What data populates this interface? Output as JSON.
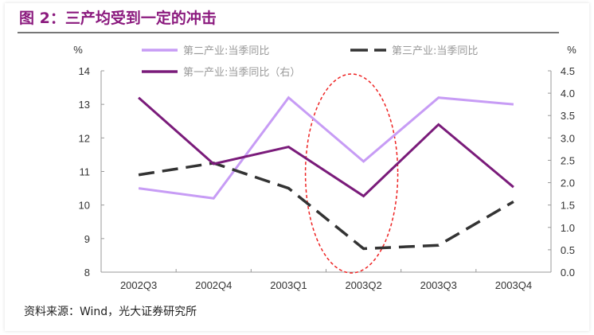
{
  "title": "图 2：三产均受到一定的冲击",
  "source": "资料来源：Wind，光大证券研究所",
  "chart_data": {
    "type": "line",
    "title": "图 2：三产均受到一定的冲击",
    "categories": [
      "2002Q3",
      "2002Q4",
      "2003Q1",
      "2003Q2",
      "2003Q3",
      "2003Q4"
    ],
    "left_axis": {
      "label": "%",
      "ylim": [
        8,
        14
      ],
      "ticks": [
        "8",
        "9",
        "10",
        "11",
        "12",
        "13",
        "14"
      ]
    },
    "right_axis": {
      "label": "%",
      "ylim": [
        0,
        4.5
      ],
      "ticks": [
        "0.0",
        "0.5",
        "1.0",
        "1.5",
        "2.0",
        "2.5",
        "3.0",
        "3.5",
        "4.0",
        "4.5"
      ]
    },
    "series": [
      {
        "name": "第二产业:当季同比",
        "axis": "left",
        "style": "solid",
        "color": "#c79cf5",
        "values": [
          10.5,
          10.2,
          13.2,
          11.3,
          13.2,
          13.0
        ]
      },
      {
        "name": "第三产业:当季同比",
        "axis": "left",
        "style": "dashed",
        "color": "#333333",
        "values": [
          10.9,
          11.25,
          10.5,
          8.7,
          8.8,
          10.1
        ]
      },
      {
        "name": "第一产业:当季同比（右）",
        "axis": "right",
        "style": "solid",
        "color": "#7a1b7a",
        "values": [
          3.9,
          2.42,
          2.8,
          1.7,
          3.3,
          1.9
        ]
      }
    ],
    "annotation": {
      "type": "ellipse",
      "category": "2003Q2",
      "color": "#ee2222"
    },
    "grid": false,
    "legend_position": "top"
  }
}
